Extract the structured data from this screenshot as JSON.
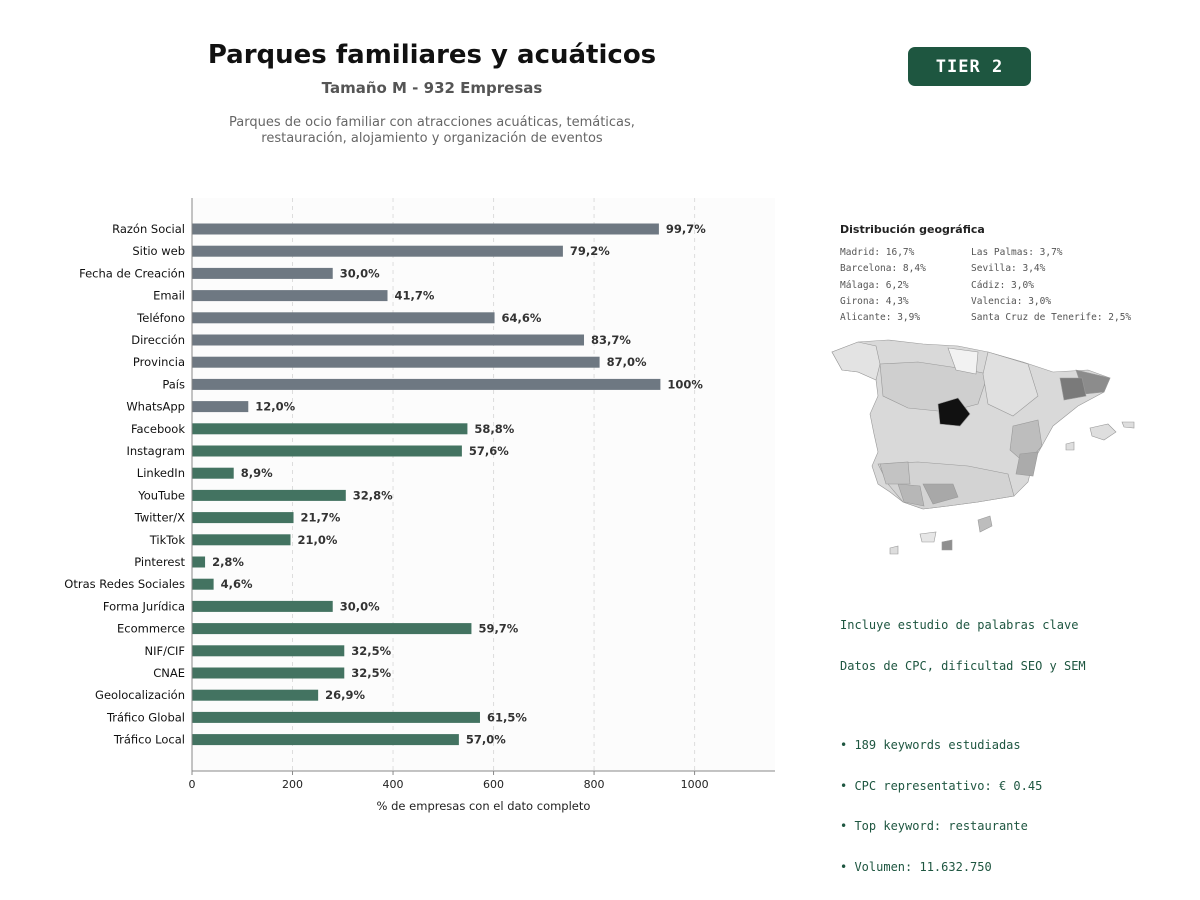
{
  "header": {
    "title": "Parques familiares y acuáticos",
    "subtitle": "Tamaño M - 932 Empresas",
    "description_line1": "Parques de ocio familiar con atracciones acuáticas, temáticas,",
    "description_line2": "restauración, alojamiento y organización de eventos",
    "tier": "TIER 2"
  },
  "chart_data": {
    "type": "bar",
    "orientation": "horizontal",
    "xlabel": "% de empresas con el dato completo",
    "xlim": [
      0,
      1160
    ],
    "xticks": [
      0,
      200,
      400,
      600,
      800,
      1000
    ],
    "grid": "x, dashed",
    "categories": [
      "Razón Social",
      "Sitio web",
      "Fecha de Creación",
      "Email",
      "Teléfono",
      "Dirección",
      "Provincia",
      "País",
      "WhatsApp",
      "Facebook",
      "Instagram",
      "LinkedIn",
      "YouTube",
      "Twitter/X",
      "TikTok",
      "Pinterest",
      "Otras Redes Sociales",
      "Forma Jurídica",
      "Ecommerce",
      "NIF/CIF",
      "CNAE",
      "Geolocalización",
      "Tráfico Global",
      "Tráfico Local"
    ],
    "values": [
      929,
      738,
      280,
      389,
      602,
      780,
      811,
      932,
      112,
      548,
      537,
      83,
      306,
      202,
      196,
      26,
      43,
      280,
      556,
      303,
      303,
      251,
      573,
      531
    ],
    "labels": [
      "99,7%",
      "79,2%",
      "30,0%",
      "41,7%",
      "64,6%",
      "83,7%",
      "87,0%",
      "100%",
      "12,0%",
      "58,8%",
      "57,6%",
      "8,9%",
      "32,8%",
      "21,7%",
      "21,0%",
      "2,8%",
      "4,6%",
      "30,0%",
      "59,7%",
      "32,5%",
      "32,5%",
      "26,9%",
      "61,5%",
      "57,0%"
    ],
    "groups": [
      "gray",
      "gray",
      "gray",
      "gray",
      "gray",
      "gray",
      "gray",
      "gray",
      "gray",
      "green",
      "green",
      "green",
      "green",
      "green",
      "green",
      "green",
      "green",
      "green",
      "green",
      "green",
      "green",
      "green",
      "green",
      "green"
    ],
    "colors": {
      "gray": "#6e7882",
      "green": "#437361"
    }
  },
  "geo": {
    "title": "Distribución geográfica",
    "col1": [
      "Madrid: 16,7%",
      "Barcelona: 8,4%",
      "Málaga: 6,2%",
      "Girona: 4,3%",
      "Alicante: 3,9%"
    ],
    "col2": [
      "Las Palmas: 3,7%",
      "Sevilla: 3,4%",
      "Cádiz: 3,0%",
      "Valencia: 3,0%",
      "Santa Cruz de Tenerife: 2,5%"
    ]
  },
  "keywords": {
    "line1": "Incluye estudio de palabras clave",
    "line2": "Datos de CPC, dificultad SEO y SEM",
    "bullets": [
      "• 189 keywords estudiadas",
      "• CPC representativo: € 0.45",
      "• Top keyword: restaurante",
      "• Volumen: 11.632.750"
    ]
  }
}
